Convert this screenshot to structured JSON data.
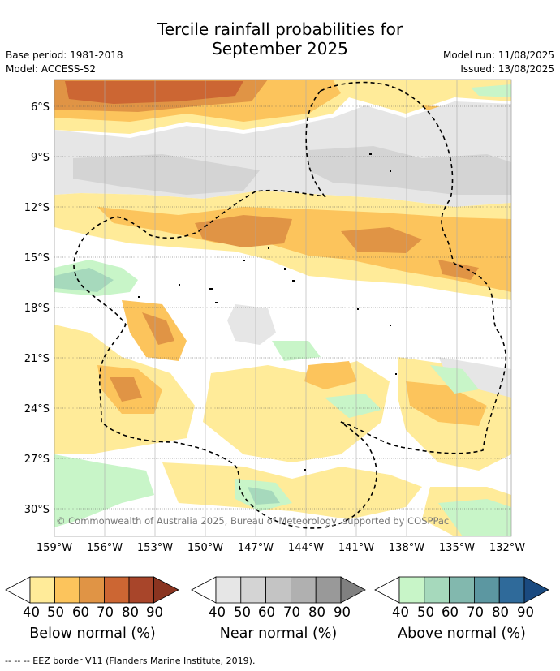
{
  "header": {
    "title_line1": "Tercile rainfall probabilities for",
    "title_line2": "September 2025",
    "base_period": "Base period: 1981-2018",
    "model": "Model: ACCESS-S2",
    "model_run": "Model run: 11/08/2025",
    "issued": "Issued: 13/08/2025"
  },
  "map": {
    "lat_ticks": [
      "6°S",
      "9°S",
      "12°S",
      "15°S",
      "18°S",
      "21°S",
      "24°S",
      "27°S",
      "30°S"
    ],
    "lon_ticks": [
      "159°W",
      "156°W",
      "153°W",
      "150°W",
      "147°W",
      "144°W",
      "141°W",
      "138°W",
      "135°W",
      "132°W"
    ],
    "copyright": "© Commonwealth of Australia 2025, Bureau of Meteorology, supported by COSPPac",
    "colors": {
      "below": [
        "#ffeb99",
        "#fcc45c",
        "#e09445",
        "#cc6633",
        "#a8452a"
      ],
      "near": [
        "#e6e6e6",
        "#d4d4d4",
        "#c4c4c4",
        "#b0b0b0",
        "#999999"
      ],
      "above": [
        "#c8f5c8",
        "#a6d9bc",
        "#82b8ae",
        "#5c97a1",
        "#2f6a9a",
        "#1a4a80"
      ]
    }
  },
  "colorbars": [
    {
      "label": "Below normal (%)",
      "ticks": [
        "40",
        "50",
        "60",
        "70",
        "80",
        "90"
      ]
    },
    {
      "label": "Near normal (%)",
      "ticks": [
        "40",
        "50",
        "60",
        "70",
        "80",
        "90"
      ]
    },
    {
      "label": "Above normal (%)",
      "ticks": [
        "40",
        "50",
        "60",
        "70",
        "80",
        "90"
      ]
    }
  ],
  "footer": "--  --  -- EEZ border V11 (Flanders Marine Institute, 2019)."
}
